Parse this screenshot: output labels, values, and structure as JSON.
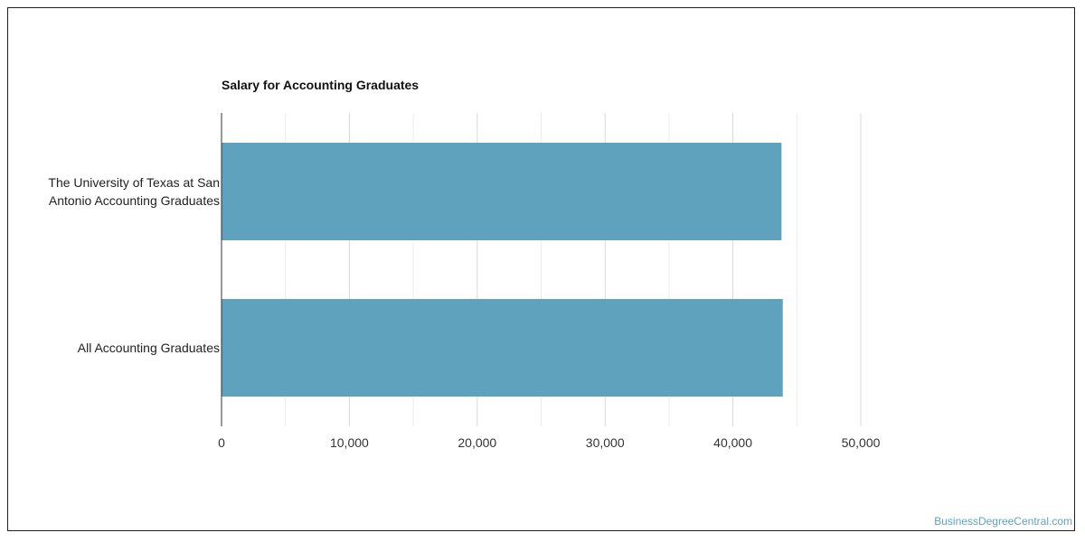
{
  "chart_data": {
    "type": "bar",
    "orientation": "horizontal",
    "title": "Salary for Accounting Graduates",
    "categories": [
      "The University of Texas at San Antonio Accounting Graduates",
      "All Accounting Graduates"
    ],
    "category_lines": [
      [
        "The University of Texas at San",
        "Antonio Accounting Graduates"
      ],
      [
        "All Accounting Graduates"
      ]
    ],
    "values": [
      43800,
      43900
    ],
    "xlim": [
      0,
      50000
    ],
    "x_ticks": [
      0,
      10000,
      20000,
      30000,
      40000,
      50000
    ],
    "x_tick_labels": [
      "0",
      "10,000",
      "20,000",
      "30,000",
      "40,000",
      "50,000"
    ],
    "minor_gridlines": true,
    "grid": true,
    "bar_color": "#5ea2bd",
    "grid_color": "#d9d9d9"
  },
  "watermark": "BusinessDegreeCentral.com"
}
